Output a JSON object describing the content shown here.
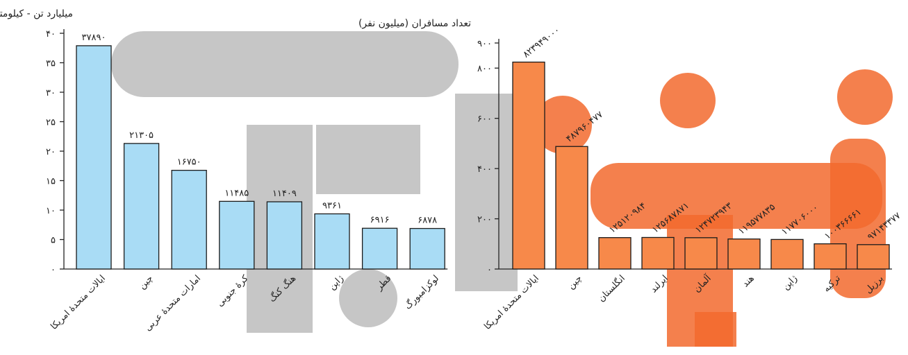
{
  "chart_data": [
    {
      "type": "bar",
      "ylabel": "میلیارد تن - کیلومتر",
      "categories": [
        "ایالات متحدهٔ امریکا",
        "چین",
        "امارات متحدهٔ عربی",
        "کرهٔ جنوبی",
        "هنگ کنگ",
        "ژاپن",
        "قطر",
        "لوکزامبورگ"
      ],
      "values": [
        37.89,
        21.305,
        16.75,
        11.485,
        11.409,
        9.361,
        6.916,
        6.878
      ],
      "data_labels": [
        "۳۷۸۹۰",
        "۲۱۳۰۵",
        "۱۶۷۵۰",
        "۱۱۴۸۵",
        "۱۱۴۰۹",
        "۹۳۶۱",
        "۶۹۱۶",
        "۶۸۷۸"
      ],
      "yticks": [
        0,
        5,
        10,
        15,
        20,
        25,
        30,
        35,
        40
      ],
      "ytick_labels": [
        "۰",
        "۵",
        "۱۰",
        "۱۵",
        "۲۰",
        "۲۵",
        "۳۰",
        "۳۵",
        "۴۰"
      ],
      "ylim": [
        0,
        40
      ],
      "grid": false,
      "color": "#a9dcf5"
    },
    {
      "type": "bar",
      "ylabel": "تعداد مسافران (میلیون نفر)",
      "categories": [
        "ایالات متحدهٔ امریکا",
        "چین",
        "انگلستان",
        "ایرلند",
        "آلمان",
        "هند",
        "ژاپن",
        "ترکیه",
        "برزیل"
      ],
      "values": [
        823.949,
        487.96,
        125.12,
        125.687,
        124.723,
        119.578,
        117.706,
        100.366,
        97.143
      ],
      "data_labels": [
        "۸۲۳۹۴۹۰۰۰",
        "۴۸۷۹۶۰۴۷۷",
        "۱۲۵۱۲۰۹۸۴",
        "۱۲۵۶۸۷۸۷۱",
        "۱۲۴۷۲۳۹۴۳",
        "۱۱۹۵۷۷۸۳۵",
        "۱۱۷۷۰۶۰۰۰",
        "۱۰۰۳۶۶۶۶۱",
        "۹۷۱۴۳۳۷۷"
      ],
      "yticks": [
        0,
        200,
        400,
        600,
        800,
        900
      ],
      "ytick_labels": [
        "۰",
        "۲۰۰",
        "۴۰۰",
        "۶۰۰",
        "۸۰۰",
        "۹۰۰"
      ],
      "ylim": [
        0,
        900
      ],
      "grid": false,
      "color": "#f7894a"
    }
  ]
}
